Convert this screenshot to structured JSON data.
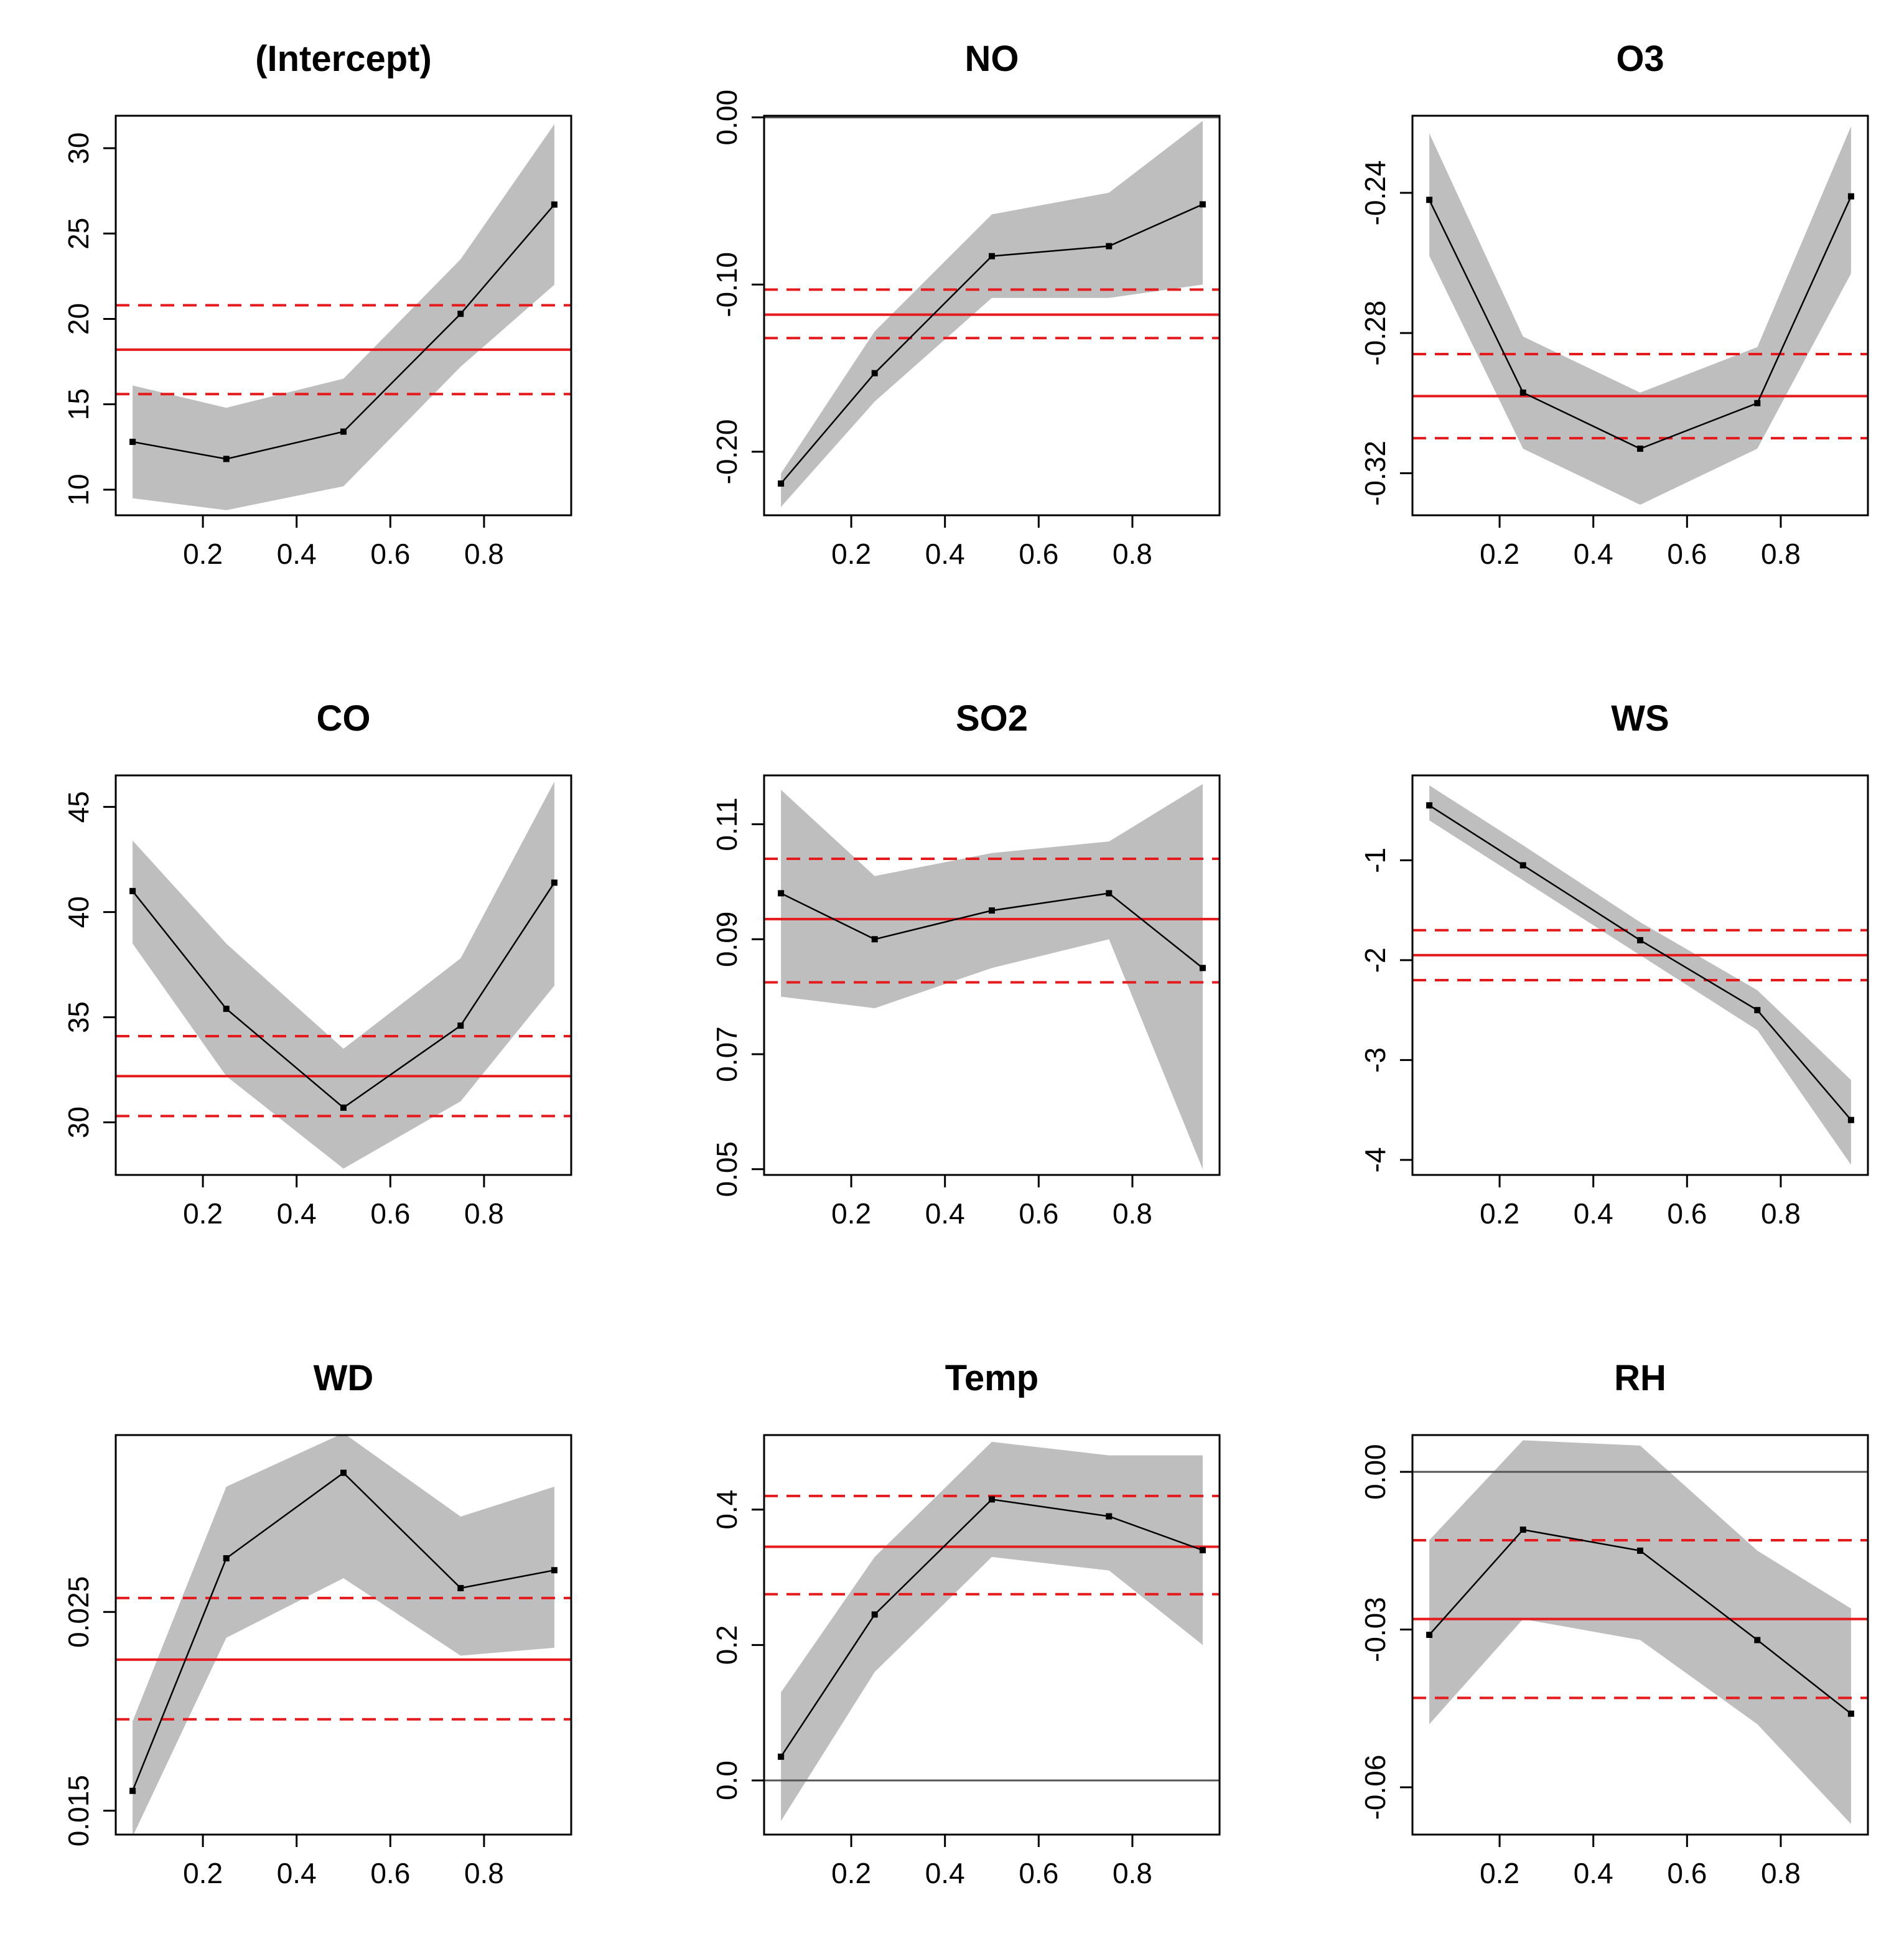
{
  "figure": {
    "type": "quantile-regression-coefficient-plot",
    "layout": "3x3"
  },
  "chart_data": [
    {
      "type": "line",
      "title": "(Intercept)",
      "x": [
        0.05,
        0.25,
        0.5,
        0.75,
        0.95
      ],
      "y": [
        12.8,
        11.8,
        13.4,
        20.3,
        26.7
      ],
      "band_lower": [
        9.5,
        8.8,
        10.2,
        17.2,
        22.0
      ],
      "band_upper": [
        16.1,
        14.8,
        16.5,
        23.5,
        31.4
      ],
      "ols": 18.2,
      "ols_ci": [
        15.6,
        20.8
      ],
      "xlim": [
        0.014,
        0.986
      ],
      "ylim": [
        8.5,
        31.9
      ],
      "xticks": [
        0.2,
        0.4,
        0.6,
        0.8
      ],
      "xtick_labels": [
        "0.2",
        "0.4",
        "0.6",
        "0.8"
      ],
      "yticks": [
        10,
        15,
        20,
        25,
        30
      ],
      "ytick_labels": [
        "10",
        "15",
        "20",
        "25",
        "30"
      ]
    },
    {
      "type": "line",
      "title": "NO",
      "x": [
        0.05,
        0.25,
        0.5,
        0.75,
        0.95
      ],
      "y": [
        -0.219,
        -0.153,
        -0.083,
        -0.077,
        -0.052
      ],
      "band_lower": [
        -0.233,
        -0.17,
        -0.108,
        -0.108,
        -0.1
      ],
      "band_upper": [
        -0.213,
        -0.128,
        -0.058,
        -0.045,
        -0.002
      ],
      "ols": -0.118,
      "ols_ci": [
        -0.103,
        -0.132
      ],
      "zero_line": 0,
      "xlim": [
        0.014,
        0.986
      ],
      "ylim": [
        -0.238,
        0.001
      ],
      "xticks": [
        0.2,
        0.4,
        0.6,
        0.8
      ],
      "xtick_labels": [
        "0.2",
        "0.4",
        "0.6",
        "0.8"
      ],
      "yticks": [
        -0.2,
        -0.1,
        0.0
      ],
      "ytick_labels": [
        "-0.20",
        "-0.10",
        "0.00"
      ]
    },
    {
      "type": "line",
      "title": "O3",
      "x": [
        0.05,
        0.25,
        0.5,
        0.75,
        0.95
      ],
      "y": [
        -0.242,
        -0.297,
        -0.313,
        -0.3,
        -0.241
      ],
      "band_lower": [
        -0.258,
        -0.313,
        -0.329,
        -0.313,
        -0.263
      ],
      "band_upper": [
        -0.223,
        -0.281,
        -0.297,
        -0.284,
        -0.221
      ],
      "ols": -0.298,
      "ols_ci": [
        -0.286,
        -0.31
      ],
      "xlim": [
        0.014,
        0.986
      ],
      "ylim": [
        -0.332,
        -0.218
      ],
      "xticks": [
        0.2,
        0.4,
        0.6,
        0.8
      ],
      "xtick_labels": [
        "0.2",
        "0.4",
        "0.6",
        "0.8"
      ],
      "yticks": [
        -0.32,
        -0.28,
        -0.24
      ],
      "ytick_labels": [
        "-0.32",
        "-0.28",
        "-0.24"
      ]
    },
    {
      "type": "line",
      "title": "CO",
      "x": [
        0.05,
        0.25,
        0.5,
        0.75,
        0.95
      ],
      "y": [
        41.0,
        35.4,
        30.7,
        34.6,
        41.4
      ],
      "band_lower": [
        38.5,
        32.2,
        27.8,
        31.0,
        36.5
      ],
      "band_upper": [
        43.4,
        38.5,
        33.5,
        37.8,
        46.2
      ],
      "ols": 32.2,
      "ols_ci": [
        30.3,
        34.1
      ],
      "xlim": [
        0.014,
        0.986
      ],
      "ylim": [
        27.5,
        46.5
      ],
      "xticks": [
        0.2,
        0.4,
        0.6,
        0.8
      ],
      "xtick_labels": [
        "0.2",
        "0.4",
        "0.6",
        "0.8"
      ],
      "yticks": [
        30,
        35,
        40,
        45
      ],
      "ytick_labels": [
        "30",
        "35",
        "40",
        "45"
      ]
    },
    {
      "type": "line",
      "title": "SO2",
      "x": [
        0.05,
        0.25,
        0.5,
        0.75,
        0.95
      ],
      "y": [
        0.098,
        0.09,
        0.095,
        0.098,
        0.085
      ],
      "band_lower": [
        0.08,
        0.078,
        0.085,
        0.09,
        0.05
      ],
      "band_upper": [
        0.116,
        0.101,
        0.105,
        0.107,
        0.117
      ],
      "ols": 0.0935,
      "ols_ci": [
        0.0825,
        0.104
      ],
      "xlim": [
        0.014,
        0.986
      ],
      "ylim": [
        0.049,
        0.1185
      ],
      "xticks": [
        0.2,
        0.4,
        0.6,
        0.8
      ],
      "xtick_labels": [
        "0.2",
        "0.4",
        "0.6",
        "0.8"
      ],
      "yticks": [
        0.05,
        0.07,
        0.09,
        0.11
      ],
      "ytick_labels": [
        "0.05",
        "0.07",
        "0.09",
        "0.11"
      ]
    },
    {
      "type": "line",
      "title": "WS",
      "x": [
        0.05,
        0.25,
        0.5,
        0.75,
        0.95
      ],
      "y": [
        -0.45,
        -1.05,
        -1.8,
        -2.5,
        -3.6
      ],
      "band_lower": [
        -0.6,
        -1.2,
        -1.95,
        -2.7,
        -4.05
      ],
      "band_upper": [
        -0.25,
        -0.85,
        -1.62,
        -2.3,
        -3.2
      ],
      "ols": -1.95,
      "ols_ci": [
        -1.7,
        -2.2
      ],
      "xlim": [
        0.014,
        0.986
      ],
      "ylim": [
        -4.15,
        -0.15
      ],
      "xticks": [
        0.2,
        0.4,
        0.6,
        0.8
      ],
      "xtick_labels": [
        "0.2",
        "0.4",
        "0.6",
        "0.8"
      ],
      "yticks": [
        -4,
        -3,
        -2,
        -1
      ],
      "ytick_labels": [
        "-4",
        "-3",
        "-2",
        "-1"
      ]
    },
    {
      "type": "line",
      "title": "WD",
      "x": [
        0.05,
        0.25,
        0.5,
        0.75,
        0.95
      ],
      "y": [
        0.016,
        0.0277,
        0.032,
        0.0262,
        0.0271
      ],
      "band_lower": [
        0.0137,
        0.0237,
        0.0267,
        0.0228,
        0.0232
      ],
      "band_upper": [
        0.0195,
        0.0313,
        0.034,
        0.0298,
        0.0313
      ],
      "ols": 0.0226,
      "ols_ci": [
        0.0196,
        0.0257
      ],
      "xlim": [
        0.014,
        0.986
      ],
      "ylim": [
        0.0138,
        0.0339
      ],
      "xticks": [
        0.2,
        0.4,
        0.6,
        0.8
      ],
      "xtick_labels": [
        "0.2",
        "0.4",
        "0.6",
        "0.8"
      ],
      "yticks": [
        0.015,
        0.025
      ],
      "ytick_labels": [
        "0.015",
        "0.025"
      ]
    },
    {
      "type": "line",
      "title": "Temp",
      "x": [
        0.05,
        0.25,
        0.5,
        0.75,
        0.95
      ],
      "y": [
        0.035,
        0.245,
        0.415,
        0.39,
        0.34
      ],
      "band_lower": [
        -0.06,
        0.16,
        0.33,
        0.31,
        0.2
      ],
      "band_upper": [
        0.13,
        0.33,
        0.5,
        0.48,
        0.48
      ],
      "ols": 0.345,
      "ols_ci": [
        0.275,
        0.42
      ],
      "zero_line": 0,
      "xlim": [
        0.014,
        0.986
      ],
      "ylim": [
        -0.08,
        0.51
      ],
      "xticks": [
        0.2,
        0.4,
        0.6,
        0.8
      ],
      "xtick_labels": [
        "0.2",
        "0.4",
        "0.6",
        "0.8"
      ],
      "yticks": [
        0.0,
        0.2,
        0.4
      ],
      "ytick_labels": [
        "0.0",
        "0.2",
        "0.4"
      ]
    },
    {
      "type": "line",
      "title": "RH",
      "x": [
        0.05,
        0.25,
        0.5,
        0.75,
        0.95
      ],
      "y": [
        -0.031,
        -0.011,
        -0.015,
        -0.032,
        -0.046
      ],
      "band_lower": [
        -0.048,
        -0.028,
        -0.032,
        -0.048,
        -0.067
      ],
      "band_upper": [
        -0.013,
        0.006,
        0.005,
        -0.015,
        -0.026
      ],
      "ols": -0.028,
      "ols_ci": [
        -0.013,
        -0.043
      ],
      "zero_line": 0,
      "xlim": [
        0.014,
        0.986
      ],
      "ylim": [
        -0.069,
        0.007
      ],
      "xticks": [
        0.2,
        0.4,
        0.6,
        0.8
      ],
      "xtick_labels": [
        "0.2",
        "0.4",
        "0.6",
        "0.8"
      ],
      "yticks": [
        -0.06,
        -0.03,
        0.0
      ],
      "ytick_labels": [
        "-0.06",
        "-0.03",
        "0.00"
      ]
    }
  ]
}
